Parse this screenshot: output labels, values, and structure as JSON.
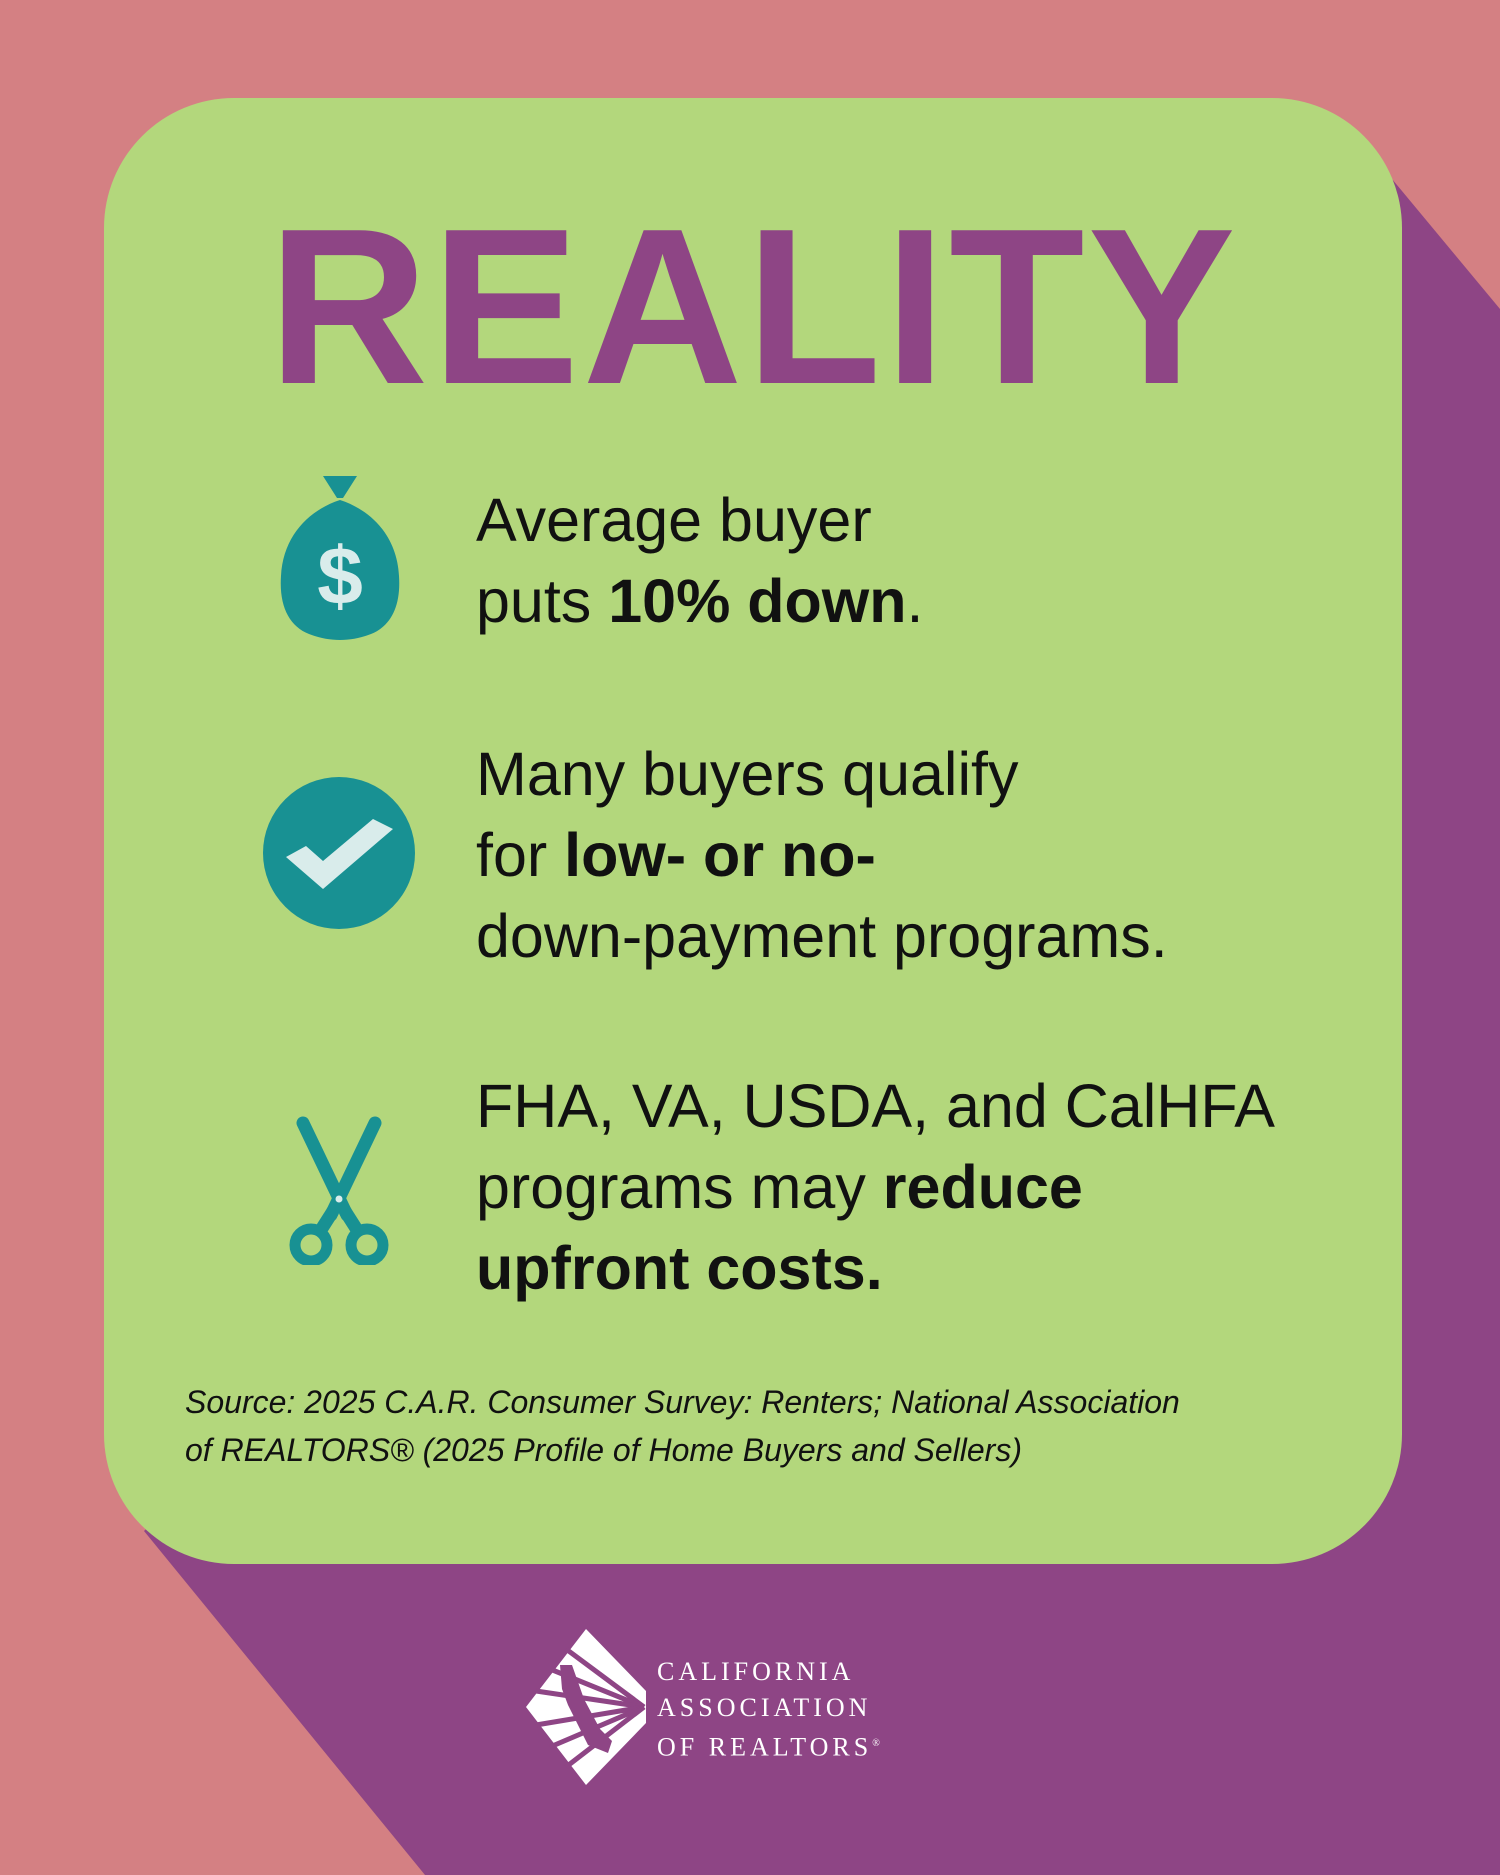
{
  "title": "REALITY",
  "items": [
    {
      "icon": "money-bag-icon",
      "lines": [
        [
          "Average buyer",
          ""
        ],
        [
          "puts ",
          "10% down",
          "."
        ]
      ]
    },
    {
      "icon": "check-circle-icon",
      "lines": [
        [
          "Many buyers qualify",
          ""
        ],
        [
          "for ",
          "low- or no-",
          ""
        ],
        [
          "down-payment programs.",
          ""
        ]
      ]
    },
    {
      "icon": "scissors-icon",
      "lines": [
        [
          "FHA, VA, USDA, and CalHFA",
          ""
        ],
        [
          "programs may ",
          "reduce",
          ""
        ],
        [
          "",
          "upfront costs.",
          ""
        ]
      ]
    }
  ],
  "source": {
    "line1": "Source: 2025 C.A.R. Consumer Survey: Renters; National Association",
    "line2": "of REALTORS® (2025 Profile of Home Buyers and Sellers)"
  },
  "logo": {
    "line1": "CALIFORNIA",
    "line2": "ASSOCIATION",
    "line3": "OF REALTORS",
    "mark": "®"
  },
  "colors": {
    "background": "#d48083",
    "shadow": "#8e4585",
    "card": "#b3d77c",
    "title": "#8e4585",
    "icon": "#189193",
    "icon_light": "#d9eceb"
  }
}
